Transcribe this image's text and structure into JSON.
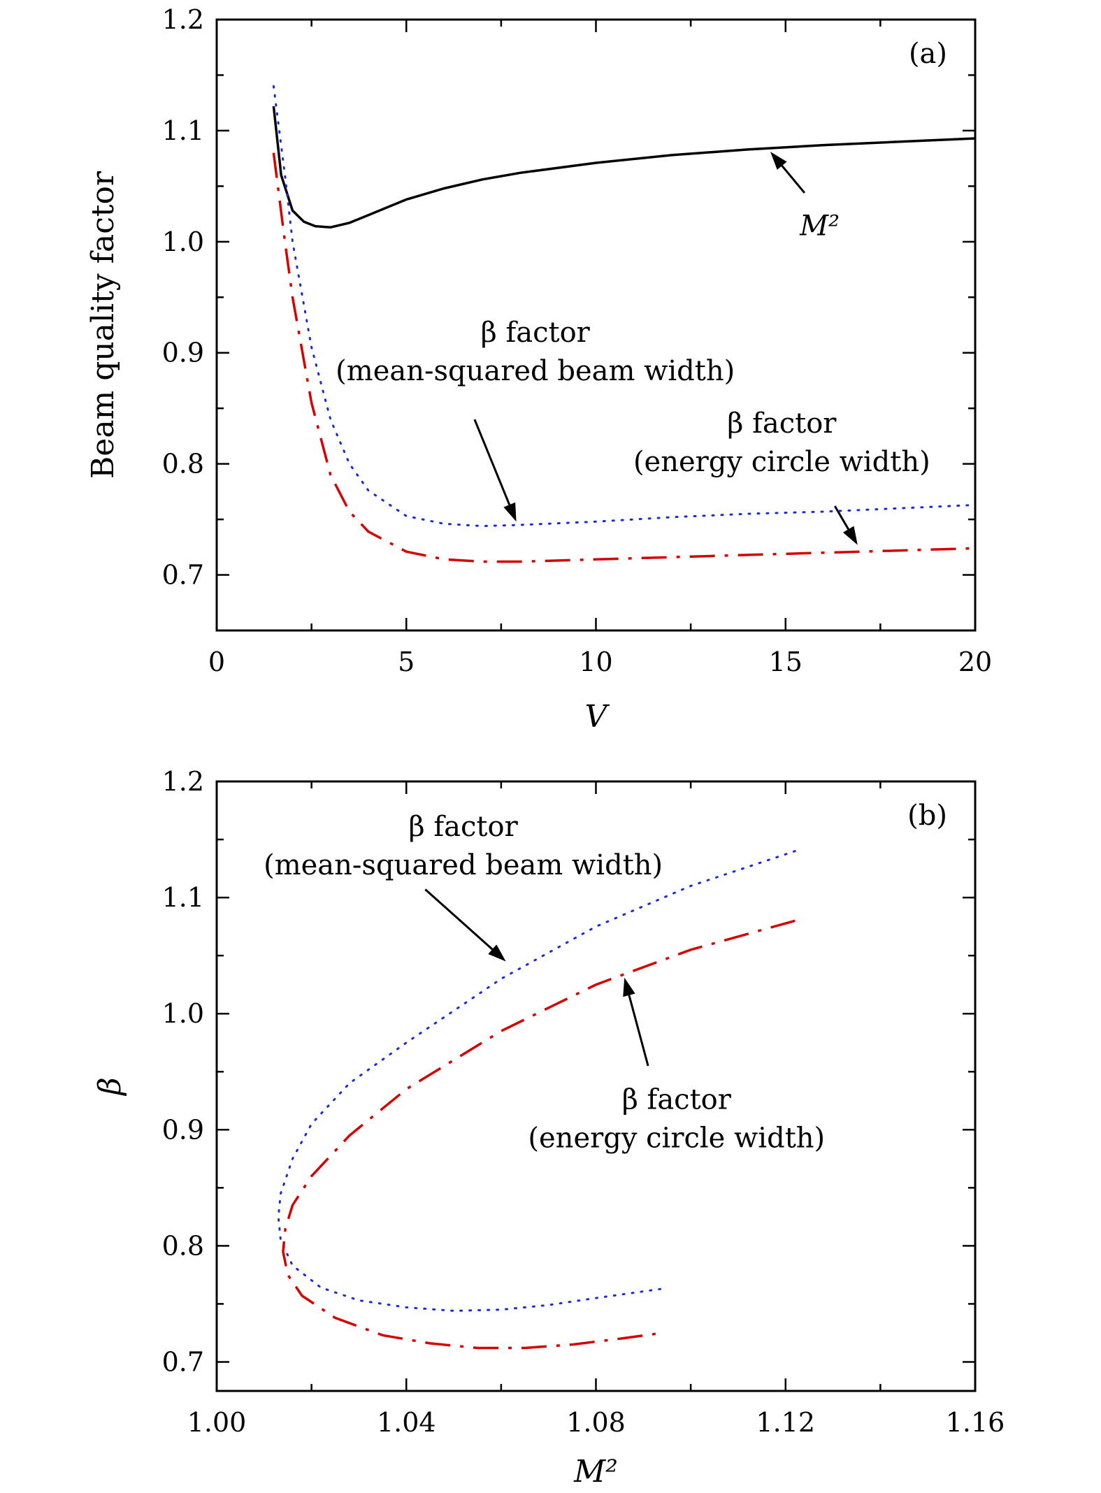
{
  "chart_data": [
    {
      "type": "line",
      "panel_label": "(a)",
      "xlabel": "V",
      "ylabel": "Beam quality factor",
      "xlim": [
        0,
        20
      ],
      "ylim": [
        0.65,
        1.2
      ],
      "xticks": [
        0,
        5,
        10,
        15,
        20
      ],
      "xtick_labels": [
        "0",
        "5",
        "10",
        "15",
        "20"
      ],
      "yticks": [
        0.7,
        0.8,
        0.9,
        1.0,
        1.1,
        1.2
      ],
      "ytick_labels": [
        "0.7",
        "0.8",
        "0.9",
        "1.0",
        "1.1",
        "1.2"
      ],
      "series": [
        {
          "key": "m2",
          "color": "#000000",
          "style": "solid",
          "x": [
            1.5,
            1.7,
            2.0,
            2.3,
            2.6,
            3.0,
            3.5,
            4.0,
            5.0,
            6.0,
            7.0,
            8.0,
            10.0,
            12.0,
            14.0,
            16.0,
            18.0,
            20.0
          ],
          "y": [
            1.122,
            1.06,
            1.028,
            1.018,
            1.014,
            1.013,
            1.017,
            1.024,
            1.038,
            1.048,
            1.056,
            1.062,
            1.071,
            1.078,
            1.083,
            1.087,
            1.09,
            1.093
          ]
        },
        {
          "key": "msq",
          "color": "#1a2bd6",
          "style": "dotted",
          "x": [
            1.5,
            1.8,
            2.0,
            2.5,
            3.0,
            3.5,
            4.0,
            5.0,
            6.0,
            7.0,
            8.0,
            10.0,
            12.0,
            14.0,
            16.0,
            18.0,
            20.0
          ],
          "y": [
            1.14,
            1.06,
            1.0,
            0.905,
            0.84,
            0.8,
            0.776,
            0.753,
            0.746,
            0.744,
            0.745,
            0.748,
            0.752,
            0.755,
            0.757,
            0.76,
            0.763
          ]
        },
        {
          "key": "energy",
          "color": "#d40000",
          "style": "dash-dot",
          "x": [
            1.5,
            1.8,
            2.0,
            2.5,
            3.0,
            3.5,
            4.0,
            5.0,
            6.0,
            7.0,
            8.0,
            10.0,
            12.0,
            14.0,
            16.0,
            18.0,
            20.0
          ],
          "y": [
            1.08,
            1.0,
            0.95,
            0.855,
            0.79,
            0.757,
            0.739,
            0.721,
            0.714,
            0.712,
            0.712,
            0.714,
            0.716,
            0.718,
            0.72,
            0.722,
            0.724
          ]
        }
      ],
      "annotations": [
        {
          "lines": [
            "M²"
          ],
          "text_at": [
            15.9,
            1.006
          ],
          "arrow_from": [
            15.5,
            1.044
          ],
          "arrow_to": [
            14.6,
            1.081
          ]
        },
        {
          "lines": [
            "β factor",
            "(mean-squared beam width)"
          ],
          "text_at": [
            8.4,
            0.91
          ],
          "arrow_from": [
            6.8,
            0.84
          ],
          "arrow_to": [
            7.9,
            0.748
          ]
        },
        {
          "lines": [
            "β factor",
            "(energy circle width)"
          ],
          "text_at": [
            14.9,
            0.828
          ],
          "arrow_from": [
            16.3,
            0.762
          ],
          "arrow_to": [
            16.9,
            0.727
          ]
        }
      ]
    },
    {
      "type": "line",
      "panel_label": "(b)",
      "xlabel": "M²",
      "ylabel": "β",
      "xlim": [
        1.0,
        1.16
      ],
      "ylim": [
        0.675,
        1.2
      ],
      "xticks": [
        1.0,
        1.04,
        1.08,
        1.12,
        1.16
      ],
      "xtick_labels": [
        "1.00",
        "1.04",
        "1.08",
        "1.12",
        "1.16"
      ],
      "yticks": [
        0.7,
        0.8,
        0.9,
        1.0,
        1.1,
        1.2
      ],
      "ytick_labels": [
        "0.7",
        "0.8",
        "0.9",
        "1.0",
        "1.1",
        "1.2"
      ],
      "series": [
        {
          "key": "msq",
          "color": "#1a2bd6",
          "style": "dotted",
          "x": [
            1.122,
            1.1,
            1.08,
            1.06,
            1.04,
            1.028,
            1.02,
            1.016,
            1.0135,
            1.013,
            1.0135,
            1.016,
            1.022,
            1.03,
            1.04,
            1.05,
            1.06,
            1.07,
            1.08,
            1.094
          ],
          "y": [
            1.14,
            1.11,
            1.075,
            1.03,
            0.975,
            0.94,
            0.905,
            0.875,
            0.845,
            0.825,
            0.805,
            0.783,
            0.764,
            0.753,
            0.747,
            0.744,
            0.745,
            0.749,
            0.755,
            0.763
          ]
        },
        {
          "key": "energy",
          "color": "#d40000",
          "style": "dash-dot",
          "x": [
            1.122,
            1.1,
            1.08,
            1.06,
            1.04,
            1.028,
            1.02,
            1.016,
            1.0145,
            1.014,
            1.015,
            1.018,
            1.025,
            1.035,
            1.045,
            1.055,
            1.065,
            1.075,
            1.085,
            1.094
          ],
          "y": [
            1.08,
            1.055,
            1.025,
            0.985,
            0.935,
            0.895,
            0.86,
            0.835,
            0.815,
            0.795,
            0.775,
            0.757,
            0.738,
            0.723,
            0.716,
            0.712,
            0.712,
            0.715,
            0.72,
            0.725
          ]
        }
      ],
      "annotations": [
        {
          "lines": [
            "β factor",
            "(mean-squared beam width)"
          ],
          "text_at": [
            1.052,
            1.153
          ],
          "arrow_from": [
            1.044,
            1.107
          ],
          "arrow_to": [
            1.061,
            1.045
          ]
        },
        {
          "lines": [
            "β factor",
            "(energy circle width)"
          ],
          "text_at": [
            1.097,
            0.918
          ],
          "arrow_from": [
            1.091,
            0.955
          ],
          "arrow_to": [
            1.086,
            1.031
          ]
        }
      ]
    }
  ]
}
